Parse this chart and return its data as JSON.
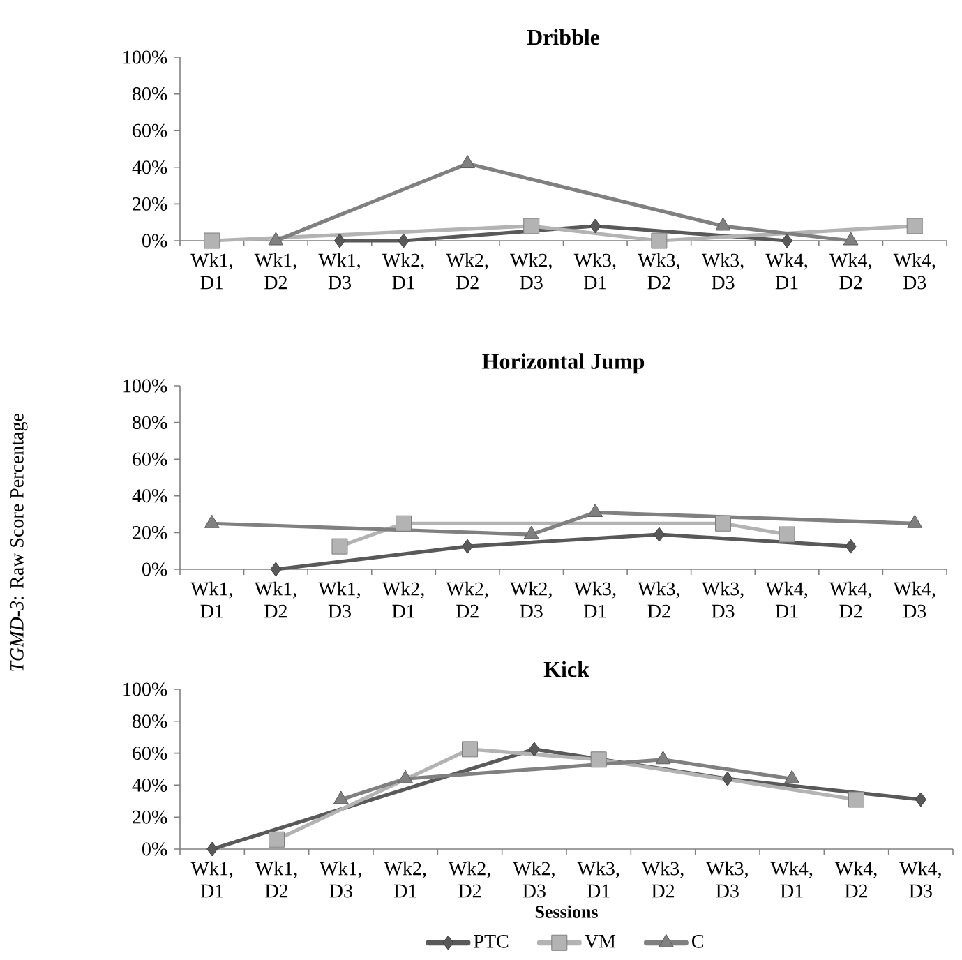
{
  "chart_data": [
    {
      "type": "line",
      "title": "Dribble",
      "categories": [
        "Wk1, D1",
        "Wk1, D2",
        "Wk1, D3",
        "Wk2, D1",
        "Wk2, D2",
        "Wk2, D3",
        "Wk3, D1",
        "Wk3, D2",
        "Wk3, D3",
        "Wk4, D1",
        "Wk4, D2",
        "Wk4, D3"
      ],
      "ylim": [
        0,
        100
      ],
      "yticks": [
        {
          "value": 0,
          "label": "0%"
        },
        {
          "value": 20,
          "label": "20%"
        },
        {
          "value": 40,
          "label": "40%"
        },
        {
          "value": 60,
          "label": "60%"
        },
        {
          "value": 80,
          "label": "80%"
        },
        {
          "value": 100,
          "label": "100%"
        }
      ],
      "grid": false,
      "legend": false,
      "series": [
        {
          "color": "#595959",
          "marker": "diamond",
          "values": [
            null,
            null,
            0,
            0,
            null,
            null,
            8,
            null,
            null,
            0,
            null,
            null
          ]
        },
        {
          "color": "#b3b3b3",
          "marker": "square",
          "values": [
            0,
            null,
            null,
            null,
            null,
            8,
            null,
            0,
            null,
            null,
            null,
            8
          ]
        },
        {
          "color": "#808080",
          "marker": "triangle",
          "values": [
            null,
            0,
            null,
            null,
            42,
            null,
            null,
            null,
            8,
            null,
            0,
            null
          ]
        }
      ]
    },
    {
      "type": "line",
      "title": "Horizontal Jump",
      "ylabel": "*TGMD-3*: Raw Score Percentage",
      "categories": [
        "Wk1, D1",
        "Wk1, D2",
        "Wk1, D3",
        "Wk2, D1",
        "Wk2, D2",
        "Wk2, D3",
        "Wk3, D1",
        "Wk3, D2",
        "Wk3, D3",
        "Wk4, D1",
        "Wk4, D2",
        "Wk4, D3"
      ],
      "ylim": [
        0,
        100
      ],
      "yticks": [
        {
          "value": 0,
          "label": "0%"
        },
        {
          "value": 20,
          "label": "20%"
        },
        {
          "value": 40,
          "label": "40%"
        },
        {
          "value": 60,
          "label": "60%"
        },
        {
          "value": 80,
          "label": "80%"
        },
        {
          "value": 100,
          "label": "100%"
        }
      ],
      "grid": false,
      "legend": false,
      "series": [
        {
          "color": "#595959",
          "marker": "diamond",
          "values": [
            null,
            0,
            null,
            null,
            12.5,
            null,
            null,
            19,
            null,
            null,
            12.5,
            null
          ]
        },
        {
          "color": "#b3b3b3",
          "marker": "square",
          "values": [
            null,
            null,
            12.5,
            25,
            null,
            null,
            null,
            null,
            25,
            19,
            null,
            null
          ]
        },
        {
          "color": "#808080",
          "marker": "triangle",
          "values": [
            25,
            null,
            null,
            null,
            null,
            19,
            31,
            null,
            null,
            null,
            null,
            25
          ]
        }
      ]
    },
    {
      "type": "line",
      "title": "Kick",
      "xlabel": "Sessions",
      "categories": [
        "Wk1, D1",
        "Wk1, D2",
        "Wk1, D3",
        "Wk2, D1",
        "Wk2, D2",
        "Wk2, D3",
        "Wk3, D1",
        "Wk3, D2",
        "Wk3, D3",
        "Wk4, D1",
        "Wk4, D2",
        "Wk4, D3"
      ],
      "ylim": [
        0,
        100
      ],
      "yticks": [
        {
          "value": 0,
          "label": "0%"
        },
        {
          "value": 20,
          "label": "20%"
        },
        {
          "value": 40,
          "label": "40%"
        },
        {
          "value": 60,
          "label": "60%"
        },
        {
          "value": 80,
          "label": "80%"
        },
        {
          "value": 100,
          "label": "100%"
        }
      ],
      "grid": false,
      "legend": "bottom",
      "series": [
        {
          "name": "PTC",
          "color": "#595959",
          "marker": "diamond",
          "values": [
            0,
            null,
            null,
            null,
            null,
            62.5,
            null,
            null,
            44,
            null,
            null,
            31
          ]
        },
        {
          "name": "VM",
          "color": "#b3b3b3",
          "marker": "square",
          "values": [
            null,
            6,
            null,
            null,
            62.5,
            null,
            56,
            null,
            null,
            null,
            31,
            null
          ]
        },
        {
          "name": "C",
          "color": "#808080",
          "marker": "triangle",
          "values": [
            null,
            null,
            31,
            44,
            null,
            null,
            null,
            56,
            null,
            44,
            null,
            null
          ]
        }
      ]
    }
  ]
}
